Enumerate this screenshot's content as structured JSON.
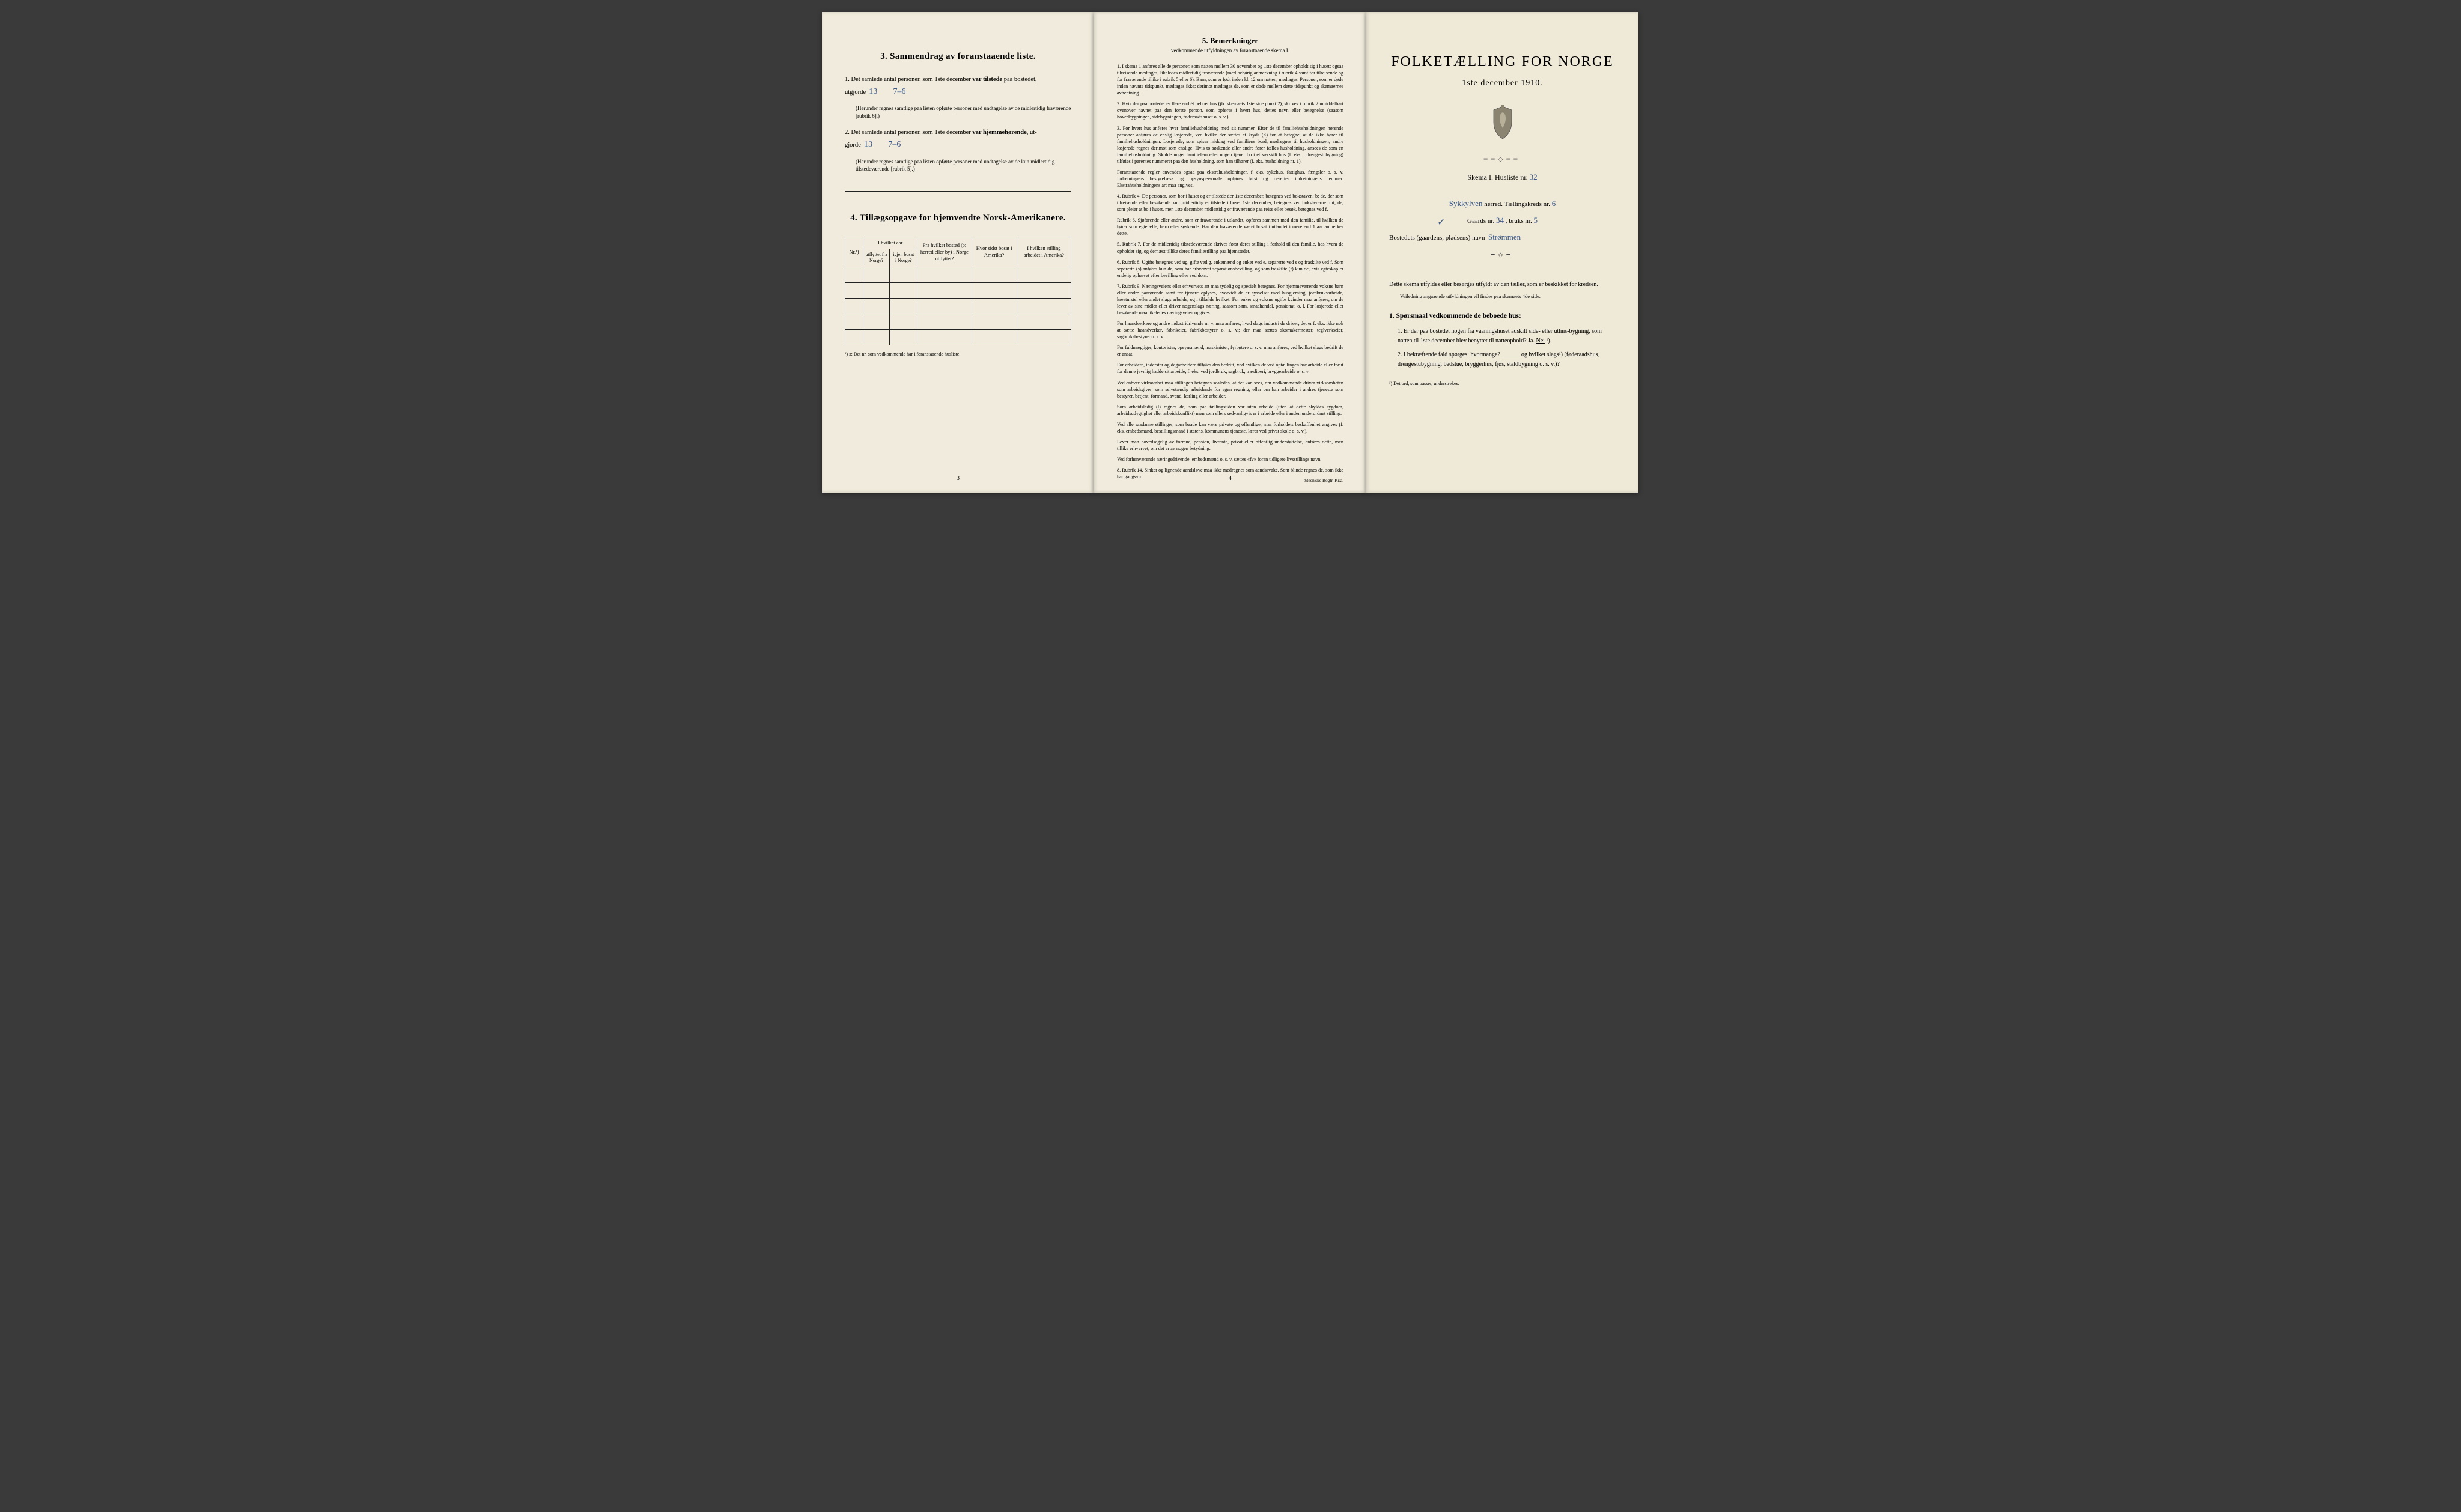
{
  "panel1": {
    "section3_title": "3.   Sammendrag av foranstaaende liste.",
    "item1_lead": "1.   Det samlede antal personer, som 1ste december",
    "item1_bold": "var tilstede",
    "item1_tail": "paa bostedet,",
    "item1_line2": "utgjorde",
    "item1_hand_a": "13",
    "item1_hand_b": "7–6",
    "item1_fine": "(Herunder regnes samtlige paa listen opførte personer med undtagelse av de midlertidig fraværende [rubrik 6].)",
    "item2_lead": "2.   Det samlede antal personer, som 1ste december",
    "item2_bold": "var hjemmehørende",
    "item2_tail": ", ut-",
    "item2_line2": "gjorde",
    "item2_hand_a": "13",
    "item2_hand_b": "7–6",
    "item2_fine": "(Herunder regnes samtlige paa listen opførte personer med undtagelse av de kun midlertidig tilstedeværende [rubrik 5].)",
    "section4_title": "4.   Tillægsopgave for hjemvendte Norsk-Amerikanere.",
    "table": {
      "col1": "Nr.¹)",
      "col2_top": "I hvilket aar",
      "col2a": "utflyttet fra Norge?",
      "col2b": "igjen bosat i Norge?",
      "col3": "Fra hvilket bosted (ɔ: herred eller by) i Norge utflyttet?",
      "col4": "Hvor sidst bosat i Amerika?",
      "col5": "I hvilken stilling arbeidet i Amerika?"
    },
    "footnote": "¹) ɔ: Det nr. som vedkommende har i foranstaaende husliste.",
    "pagenum": "3"
  },
  "panel2": {
    "title": "5.   Bemerkninger",
    "subtitle": "vedkommende utfyldningen av foranstaaende skema I.",
    "remarks": [
      "1.  I skema 1 anføres alle de personer, som natten mellem 30 november og 1ste december opholdt sig i huset; ogsaa tilreisende medtages; likeledes midlertidig fraværende (med behørig anmerkning i rubrik 4 samt for tilreisende og for fraværende tillike i rubrik 5 eller 6). Barn, som er født inden kl. 12 om natten, medtages. Personer, som er døde inden nævnte tidspunkt, medtages ikke; derimot medtages de, som er døde mellem dette tidspunkt og skemaernes avhentning.",
      "2.  Hvis der paa bostedet er flere end ét beboet hus (jfr. skemaets 1ste side punkt 2), skrives i rubrik 2 umiddelbart ovenover navnet paa den første person, som opføres i hvert hus, dettes navn eller betegnelse (saasom hovedbygningen, sidebygningen, føderaadshuset o. s. v.).",
      "3.  For hvert hus anføres hver familiehusholdning med sit nummer. Efter de til familiehusholdningen hørende personer anføres de enslig losjerede, ved hvilke der sættes et kryds (×) for at betegne, at de ikke hører til familiehusholdningen. Losjerede, som spiser middag ved familiens bord, medregnes til husholdningen; andre losjerede regnes derimot som enslige. Hvis to søskende eller andre fører fælles husholdning, ansees de som en familiehusholdning. Skulde noget familielem eller nogen tjener bo i et særskilt hus (f. eks. i drengestubygning) tilføies i parentes nummeret paa den husholdning, som han tilhører (f. eks. husholdning nr. 1).",
      "Foranstaaende regler anvendes ogsaa paa ekstrahusholdninger, f. eks. sykehus, fattighus, fængsler o. s. v. Indretningens bestyrelses- og opsynspersonale opføres først og derefter indretningens lemmer. Ekstrahusholdningens art maa angives.",
      "4.  Rubrik 4. De personer, som bor i huset og er tilstede der 1ste december, betegnes ved bokstaven: b; de, der som tilreisende eller besøkende kun midlertidig er tilstede i huset 1ste december, betegnes ved bokstaverne: mt; de, som pleier at bo i huset, men 1ste december midlertidig er fraværende paa reise eller besøk, betegnes ved f.",
      "Rubrik 6. Sjøfarende eller andre, som er fraværende i utlandet, opføres sammen med den familie, til hvilken de hører som egtefælle, barn eller søskende. Har den fraværende været bosat i utlandet i mere end 1 aar anmerkes dette.",
      "5.  Rubrik 7. For de midlertidig tilstedeværende skrives først deres stilling i forhold til den familie, hos hvem de opholder sig, og dernæst tillike deres familiestilling paa hjemstedet.",
      "6.  Rubrik 8. Ugifte betegnes ved ug, gifte ved g, enkemænd og enker ved e, separerte ved s og fraskilte ved f. Som separerte (s) anføres kun de, som har erhvervet separationsbevilling, og som fraskilte (f) kun de, hvis egteskap er endelig ophævet efter bevilling eller ved dom.",
      "7.  Rubrik 9. Næringsveiens eller erhvervets art maa tydelig og specielt betegnes. For hjemmeværende voksne barn eller andre paarørende samt for tjenere oplyses, hvorvidt de er sysselsat med husgjerning, jordbruksarbeide, kreaturstel eller andet slags arbeide, og i tilfælde hvilket. For enker og voksne ugifte kvinder maa anføres, om de lever av sine midler eller driver nogenslags næring, saasom søm, smaahandel, pensionat, o. l. For losjerede eller besøkende maa likeledes næringsveien opgives.",
      "For haandverkere og andre industridrivende m. v. maa anføres, hvad slags industri de driver; det er f. eks. ikke nok at sætte haandverker, fabrikeier, fabrikbestyrer o. s. v.; der maa sættes skomakermester, teglverkseier, sagbruksbestyrer o. s. v.",
      "For fuldmægtiger, kontorister, opsynsmænd, maskinister, fyrbøtere o. s. v. maa anføres, ved hvilket slags bedrift de er ansat.",
      "For arbeidere, inderster og dagarbeidere tilføies den bedrift, ved hvilken de ved optællingen har arbeide eller forut for denne jevnlig hadde sit arbeide, f. eks. ved jordbruk, sagbruk, træsliperi, bryggearbeide o. s. v.",
      "Ved enhver virksomhet maa stillingen betegnes saaledes, at det kan sees, om vedkommende driver virksomheten som arbeidsgiver, som selvstændig arbeidende for egen regning, eller om han arbeider i andres tjeneste som bestyrer, betjent, formand, svend, lærling eller arbeider.",
      "Som arbeidsledig (l) regnes de, som paa tællingstiden var uten arbeide (uten at dette skyldes sygdom, arbeidsudygtighet eller arbeidskonflikt) men som ellers sedvanligvis er i arbeide eller i anden underordnet stilling.",
      "Ved alle saadanne stillinger, som baade kan være private og offentlige, maa forholdets beskaffenhet angives (f. eks. embedsmand, bestillingsmand i statens, kommunens tjeneste, lærer ved privat skole o. s. v.).",
      "Lever man hovedsagelig av formue, pension, livrente, privat eller offentlig understøttelse, anføres dette, men tillike erhvervet, om det er av nogen betydning.",
      "Ved forhenværende næringsdrivende, embedsmænd o. s. v. sættes «fv» foran tidligere livsstillings navn.",
      "8.  Rubrik 14. Sinker og lignende aandsløve maa ikke medregnes som aandssvake. Som blinde regnes de, som ikke har gangsyn."
    ],
    "pagenum": "4",
    "publisher": "Steen'ske Bogtr.  Kr.a."
  },
  "panel3": {
    "title": "FOLKETÆLLING FOR NORGE",
    "date": "1ste december 1910.",
    "skema_label": "Skema I.   Husliste nr.",
    "skema_hand": "32",
    "herred_hand": "Sykkylven",
    "herred_label": "herred.   Tællingskreds nr.",
    "kreds_hand": "6",
    "gaard_label1": "Gaards nr.",
    "gaard_hand1": "34",
    "gaard_label2": ", bruks nr.",
    "gaard_hand2": "5",
    "bosted_label": "Bostedets (gaardens, pladsens) navn",
    "bosted_hand": "Strømmen",
    "note1": "Dette skema utfyldes eller besørges utfyldt av den tæller, som er beskikket for kredsen.",
    "note2": "Veiledning angaaende utfyldningen vil findes paa skemaets 4de side.",
    "q_head": "1.  Spørsmaal vedkommende de beboede hus:",
    "q1": "1.   Er der paa bostedet nogen fra vaaningshuset adskilt side- eller uthus-bygning, som natten til 1ste december blev benyttet til natteophold?    Ja.   Nei ¹).",
    "q2": "2.   I bekræftende fald spørges: hvormange? ______ og hvilket slags¹) (føderaadshus, drengestubygning, badstue, bryggerhus, fjøs, staldbygning o. s. v.)?",
    "foot": "¹) Det ord, som passer, understrekes."
  },
  "colors": {
    "paper": "#f0ebdc",
    "paper_r": "#efe9d8",
    "ink": "#1a1a1a",
    "hand": "#3a5a8a",
    "bg": "#3a3a3a"
  }
}
